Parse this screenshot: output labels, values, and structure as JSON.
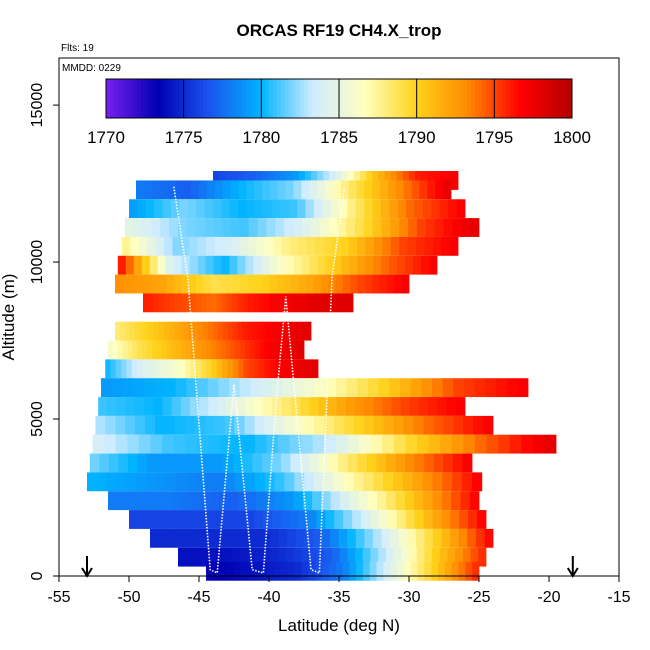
{
  "chart_data": {
    "type": "heatmap",
    "title": "ORCAS RF19 CH4.X_trop",
    "xlabel": "Latitude (deg N)",
    "ylabel": "Altitude (m)",
    "xlim": [
      -55,
      -15
    ],
    "ylim": [
      0,
      16500
    ],
    "x_ticks": [
      "-55",
      "-50",
      "-45",
      "-40",
      "-35",
      "-30",
      "-25",
      "-20",
      "-15"
    ],
    "y_ticks": [
      "0",
      "5000",
      "10000",
      "15000"
    ],
    "x_tick_values": [
      -55,
      -50,
      -45,
      -40,
      -35,
      -30,
      -25,
      -20,
      -15
    ],
    "y_tick_values": [
      0,
      5000,
      10000,
      15000
    ],
    "flights_note": "Flts: 19",
    "date_note": "MMDD: 0229",
    "colorbar": {
      "range": [
        1770,
        1800
      ],
      "tick_labels": [
        "1770",
        "1775",
        "1780",
        "1785",
        "1790",
        "1795",
        "1800"
      ],
      "tick_values": [
        1770,
        1775,
        1780,
        1785,
        1790,
        1795,
        1800
      ]
    },
    "markers": {
      "arrow_latitudes": [
        -53,
        -18.3
      ]
    },
    "colors": {
      "scale": [
        "#7a1ff2",
        "#0000b4",
        "#1a55ee",
        "#00b4ff",
        "#d0ecff",
        "#ffffc0",
        "#ffd21a",
        "#ff8800",
        "#ff0000",
        "#b40000"
      ],
      "flight_track": "#ffffff"
    },
    "profile_rows": [
      {
        "alt": 12600,
        "lat_start": -44.0,
        "lat_end": -26.5,
        "values": [
          1776,
          1777,
          1779,
          1784,
          1791,
          1796,
          1797
        ]
      },
      {
        "alt": 12300,
        "lat_start": -49.5,
        "lat_end": -27.0,
        "values": [
          1778,
          1777,
          1780,
          1782,
          1788,
          1793,
          1798
        ]
      },
      {
        "alt": 11700,
        "lat_start": -50.0,
        "lat_end": -26.0,
        "values": [
          1779,
          1782,
          1780,
          1781,
          1788,
          1794,
          1797
        ]
      },
      {
        "alt": 11100,
        "lat_start": -50.3,
        "lat_end": -25.0,
        "values": [
          1785,
          1782,
          1781,
          1784,
          1789,
          1795,
          1798
        ]
      },
      {
        "alt": 10500,
        "lat_start": -50.5,
        "lat_end": -26.5,
        "values": [
          1788,
          1782,
          1784,
          1788,
          1790,
          1795,
          1797
        ]
      },
      {
        "alt": 9900,
        "lat_start": -50.8,
        "lat_end": -28.0,
        "values": [
          1797,
          1784,
          1780,
          1786,
          1790,
          1794,
          1797
        ]
      },
      {
        "alt": 9300,
        "lat_start": -51.0,
        "lat_end": -30.0,
        "values": [
          1793,
          1792,
          1789,
          1790,
          1792,
          1795,
          1797
        ]
      },
      {
        "alt": 8700,
        "lat_start": -49.0,
        "lat_end": -34.0,
        "values": [
          1796,
          1795,
          1794,
          1796,
          1797,
          1798,
          1798
        ]
      },
      {
        "alt": 7800,
        "lat_start": -51.0,
        "lat_end": -37.0,
        "values": [
          1788,
          1790,
          1792,
          1794,
          1796,
          1797,
          1798
        ]
      },
      {
        "alt": 7200,
        "lat_start": -51.5,
        "lat_end": -37.5,
        "values": [
          1786,
          1789,
          1791,
          1793,
          1795,
          1797,
          1798
        ]
      },
      {
        "alt": 6600,
        "lat_start": -51.7,
        "lat_end": -36.5,
        "values": [
          1780,
          1784,
          1786,
          1790,
          1795,
          1797,
          1798
        ]
      },
      {
        "alt": 6000,
        "lat_start": -52.0,
        "lat_end": -21.5,
        "values": [
          1779,
          1780,
          1783,
          1786,
          1790,
          1795,
          1797
        ]
      },
      {
        "alt": 5400,
        "lat_start": -52.2,
        "lat_end": -26.0,
        "values": [
          1781,
          1780,
          1784,
          1788,
          1792,
          1795,
          1797
        ]
      },
      {
        "alt": 4800,
        "lat_start": -52.4,
        "lat_end": -24.0,
        "values": [
          1783,
          1780,
          1781,
          1786,
          1790,
          1794,
          1797
        ]
      },
      {
        "alt": 4200,
        "lat_start": -52.6,
        "lat_end": -19.5,
        "values": [
          1784,
          1781,
          1780,
          1783,
          1789,
          1794,
          1798
        ]
      },
      {
        "alt": 3600,
        "lat_start": -52.8,
        "lat_end": -25.5,
        "values": [
          1782,
          1779,
          1779,
          1782,
          1788,
          1793,
          1797
        ]
      },
      {
        "alt": 3000,
        "lat_start": -53.0,
        "lat_end": -24.8,
        "values": [
          1780,
          1779,
          1778,
          1781,
          1787,
          1792,
          1797
        ]
      },
      {
        "alt": 2400,
        "lat_start": -51.5,
        "lat_end": -25.0,
        "values": [
          1778,
          1778,
          1777,
          1779,
          1785,
          1791,
          1797
        ]
      },
      {
        "alt": 1800,
        "lat_start": -50.0,
        "lat_end": -24.5,
        "values": [
          1776,
          1776,
          1776,
          1778,
          1784,
          1791,
          1797
        ]
      },
      {
        "alt": 1200,
        "lat_start": -48.5,
        "lat_end": -24.0,
        "values": [
          1775,
          1775,
          1775,
          1777,
          1783,
          1790,
          1797
        ]
      },
      {
        "alt": 600,
        "lat_start": -46.5,
        "lat_end": -24.5,
        "values": [
          1774,
          1774,
          1775,
          1777,
          1783,
          1790,
          1796
        ]
      },
      {
        "alt": 150,
        "lat_start": -44.5,
        "lat_end": -25.0,
        "values": [
          1773,
          1774,
          1775,
          1778,
          1784,
          1790,
          1796
        ]
      }
    ],
    "flight_track": [
      [
        -46.8,
        12400
      ],
      [
        -45.8,
        9500
      ],
      [
        -44.2,
        200
      ],
      [
        -43.7,
        100
      ],
      [
        -42.5,
        6100
      ],
      [
        -41.2,
        200
      ],
      [
        -40.4,
        100
      ],
      [
        -39.5,
        5500
      ],
      [
        -38.8,
        8900
      ],
      [
        -37.0,
        200
      ],
      [
        -36.4,
        100
      ],
      [
        -35.5,
        9500
      ],
      [
        -34.6,
        12400
      ]
    ]
  }
}
